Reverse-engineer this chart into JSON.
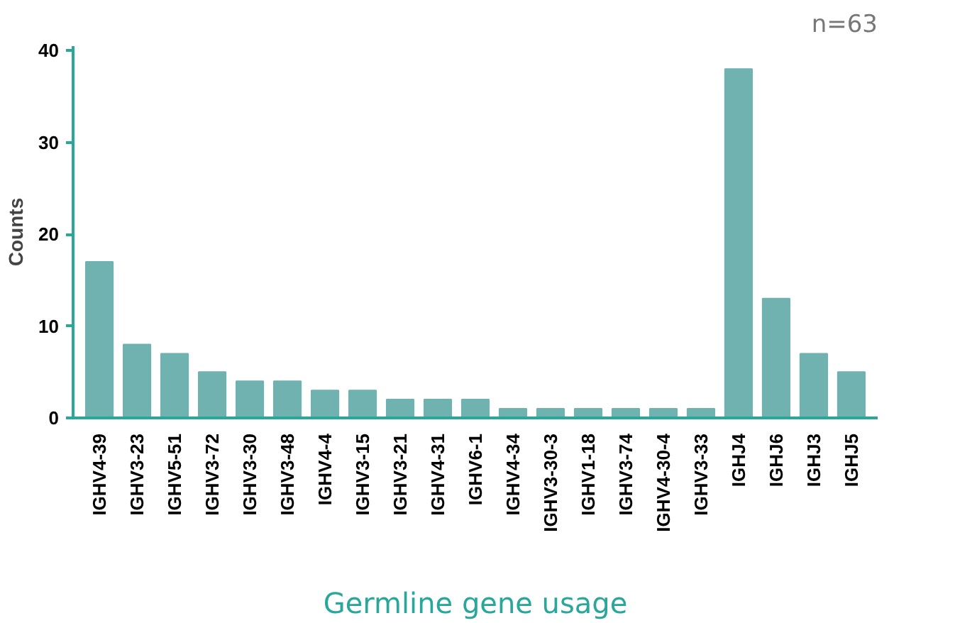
{
  "chart_data": {
    "type": "bar",
    "xlabel": "Germline gene usage",
    "ylabel": "Counts",
    "annotations": [
      "n=63"
    ],
    "categories": [
      "IGHV4-39",
      "IGHV3-23",
      "IGHV5-51",
      "IGHV3-72",
      "IGHV3-30",
      "IGHV3-48",
      "IGHV4-4",
      "IGHV3-15",
      "IGHV3-21",
      "IGHV4-31",
      "IGHV6-1",
      "IGHV4-34",
      "IGHV3-30-3",
      "IGHV1-18",
      "IGHV3-74",
      "IGHV4-30-4",
      "IGHV3-33",
      "IGHJ4",
      "IGHJ6",
      "IGHJ3",
      "IGHJ5"
    ],
    "values": [
      17,
      8,
      7,
      5,
      4,
      4,
      3,
      3,
      2,
      2,
      2,
      1,
      1,
      1,
      1,
      1,
      1,
      38,
      13,
      7,
      5
    ],
    "color": "#6fb2b0",
    "ylim": [
      0,
      40.5
    ],
    "yticks": [
      0,
      10,
      20,
      30,
      40
    ],
    "grid": false
  }
}
